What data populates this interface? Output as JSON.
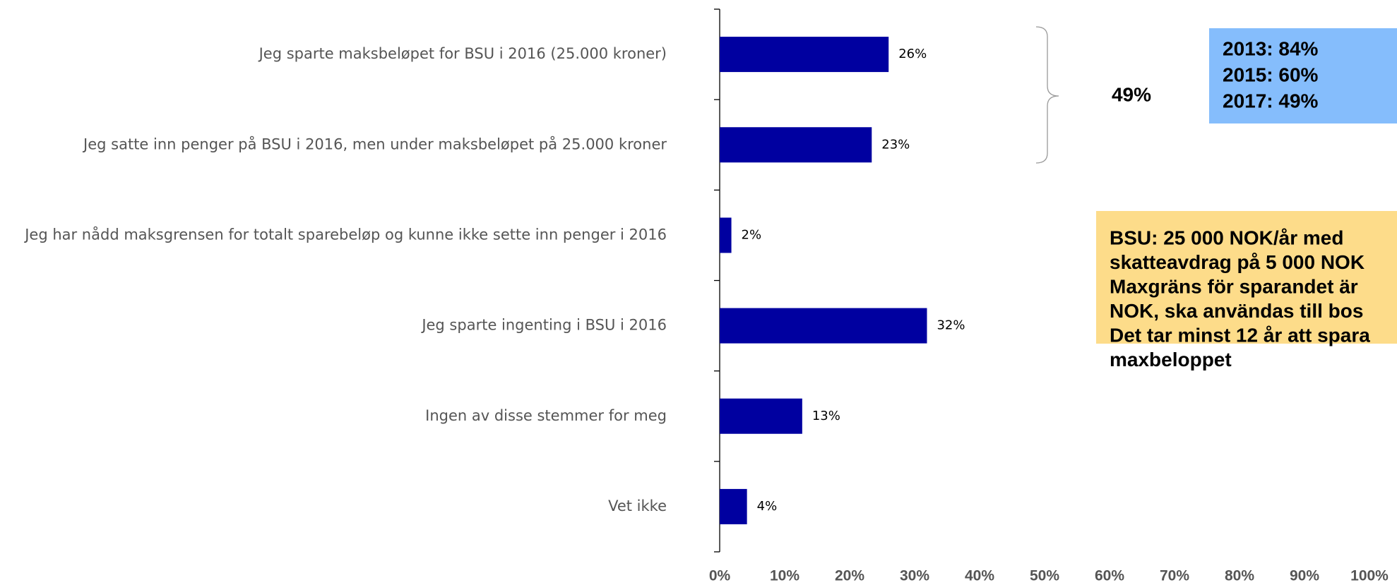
{
  "chart_data": {
    "type": "hbar",
    "categories": [
      "Jeg sparte maksbeløpet for BSU i 2016 (25.000 kroner)",
      "Jeg satte inn penger på BSU i 2016, men under maksbeløpet på 25.000 kroner",
      "Jeg har nådd maksgrensen for totalt sparebeløp og kunne ikke sette inn penger i 2016",
      "Jeg sparte ingenting i BSU i 2016",
      "Ingen av disse stemmer for meg",
      "Vet ikke"
    ],
    "values": [
      26,
      23.4,
      1.8,
      31.9,
      12.7,
      4.2
    ],
    "value_labels": [
      "26%",
      "23%",
      "2%",
      "32%",
      "13%",
      "4%"
    ],
    "color": "#0000a0",
    "xlim": [
      0,
      100
    ],
    "xticks": [
      {
        "value": 0,
        "label": "0%"
      },
      {
        "value": 10,
        "label": "10%"
      },
      {
        "value": 20,
        "label": "20%"
      },
      {
        "value": 30,
        "label": "30%"
      },
      {
        "value": 40,
        "label": "40%"
      },
      {
        "value": 50,
        "label": "50%"
      },
      {
        "value": 60,
        "label": "60%"
      },
      {
        "value": 70,
        "label": "70%"
      },
      {
        "value": 80,
        "label": "80%"
      },
      {
        "value": 90,
        "label": "90%"
      },
      {
        "value": 100,
        "label": "100%"
      }
    ],
    "grid": false,
    "annotations": {
      "brace_label": "49%",
      "history": [
        "2013: 84%",
        "2015: 60%",
        "2017: 49%"
      ],
      "note": [
        "BSU: 25 000 NOK/år med",
        "skatteavdrag på 5 000 NOK",
        "Maxgräns för sparandet är",
        "NOK, ska användas till bos",
        "Det tar minst 12 år att spara",
        "maxbeloppet"
      ]
    }
  }
}
